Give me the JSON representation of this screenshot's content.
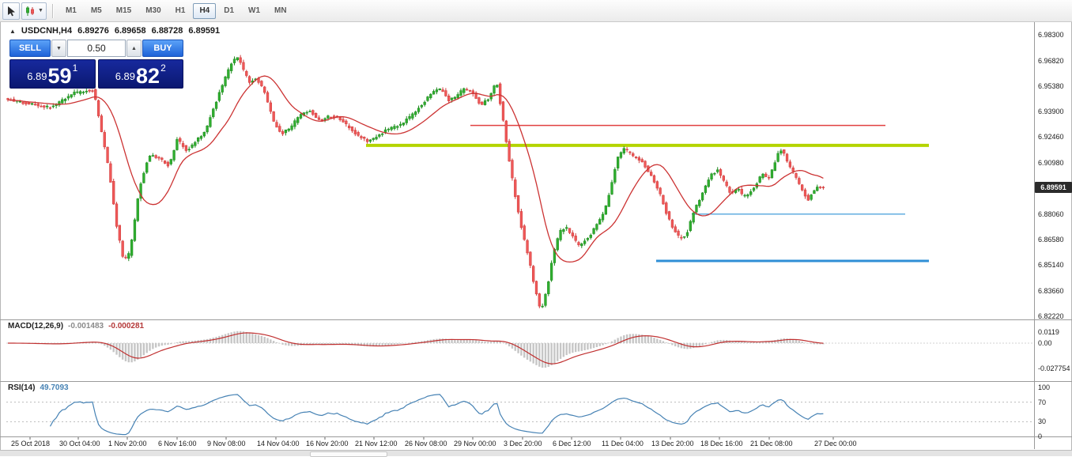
{
  "icons": {
    "caret_down": "▼",
    "caret_up": "▲",
    "one_click_toggle": "▲"
  },
  "toolbar": {
    "timeframes": [
      {
        "id": "m1",
        "label": "M1",
        "active": false
      },
      {
        "id": "m5",
        "label": "M5",
        "active": false
      },
      {
        "id": "m15",
        "label": "M15",
        "active": false
      },
      {
        "id": "m30",
        "label": "M30",
        "active": false
      },
      {
        "id": "h1",
        "label": "H1",
        "active": false
      },
      {
        "id": "h4",
        "label": "H4",
        "active": true
      },
      {
        "id": "d1",
        "label": "D1",
        "active": false
      },
      {
        "id": "w1",
        "label": "W1",
        "active": false
      },
      {
        "id": "mn",
        "label": "MN",
        "active": false
      }
    ]
  },
  "chart": {
    "symbol_header": "USDCNH,H4",
    "open": "6.89276",
    "high": "6.89658",
    "low": "6.88728",
    "close": "6.89591",
    "current_price": "6.89591",
    "price_axis": [
      "6.98300",
      "6.96820",
      "6.95380",
      "6.93900",
      "6.92460",
      "6.90980",
      "6.88060",
      "6.86580",
      "6.85140",
      "6.83660",
      "6.82220"
    ],
    "trade_panel": {
      "sell_label": "SELL",
      "buy_label": "BUY",
      "volume": "0.50",
      "sell_price_small": "6.89",
      "sell_price_big": "59",
      "sell_price_sup": "1",
      "buy_price_small": "6.89",
      "buy_price_big": "82",
      "buy_price_sup": "2"
    }
  },
  "macd": {
    "label": "MACD(12,26,9)",
    "value1": "-0.001483",
    "value2": "-0.000281",
    "axis": [
      {
        "label": "0.0119",
        "y": 420
      },
      {
        "label": "0.00",
        "y": 434
      },
      {
        "label": "-0.027754",
        "y": 466
      }
    ]
  },
  "rsi": {
    "label": "RSI(14)",
    "value": "49.7093",
    "axis": [
      {
        "label": "100",
        "v": 100
      },
      {
        "label": "70",
        "v": 70
      },
      {
        "label": "30",
        "v": 30
      },
      {
        "label": "0",
        "v": 0
      }
    ],
    "levels": [
      70,
      30
    ]
  },
  "time_axis": [
    {
      "label": "25 Oct 2018",
      "x": 14
    },
    {
      "label": "30 Oct 04:00",
      "x": 75
    },
    {
      "label": "1 Nov 20:00",
      "x": 137
    },
    {
      "label": "6 Nov 16:00",
      "x": 200
    },
    {
      "label": "9 Nov 08:00",
      "x": 262
    },
    {
      "label": "14 Nov 04:00",
      "x": 325
    },
    {
      "label": "16 Nov 20:00",
      "x": 387
    },
    {
      "label": "21 Nov 12:00",
      "x": 449
    },
    {
      "label": "26 Nov 08:00",
      "x": 512
    },
    {
      "label": "29 Nov 00:00",
      "x": 574
    },
    {
      "label": "3 Dec 20:00",
      "x": 637
    },
    {
      "label": "6 Dec 12:00",
      "x": 699
    },
    {
      "label": "11 Dec 04:00",
      "x": 761
    },
    {
      "label": "13 Dec 20:00",
      "x": 824
    },
    {
      "label": "18 Dec 16:00",
      "x": 886
    },
    {
      "label": "21 Dec 08:00",
      "x": 949
    },
    {
      "label": "27 Dec 00:00",
      "x": 1030
    }
  ],
  "chart_data": {
    "type": "candlestick",
    "symbol": "USDCNH",
    "timeframe": "H4",
    "title": "USDCNH,H4",
    "ylim": [
      6.8222,
      6.983
    ],
    "y_axis": {
      "top_price": 6.983,
      "bottom_price": 6.8222,
      "top_y": 44,
      "bottom_y": 400
    },
    "x_start": 10,
    "x_end": 1042,
    "candle_step": 3.82,
    "ma_period": 16,
    "colors": {
      "up": "#2fae2f",
      "up_edge": "#1e8a1e",
      "down": "#ef5858",
      "down_edge": "#cf3b3b",
      "ma": "#cc3333",
      "macd_hist": "#c6c6c6",
      "macd_signal": "#c03030",
      "rsi": "#4682b4",
      "divider": "#9a9a9a"
    },
    "hlines": [
      {
        "name": "resistance-red",
        "price": 6.9312,
        "x1": 595,
        "x2": 1120,
        "color": "#e04040",
        "width": 1.5
      },
      {
        "name": "resistance-yellow",
        "price": 6.9198,
        "x1": 463,
        "x2": 1175,
        "color": "#b4d400",
        "width": 4
      },
      {
        "name": "support-lightblue",
        "price": 6.8806,
        "x1": 875,
        "x2": 1145,
        "color": "#62aee0",
        "width": 1.5
      },
      {
        "name": "support-blue",
        "price": 6.8538,
        "x1": 830,
        "x2": 1175,
        "color": "#2f8fd6",
        "width": 3
      }
    ],
    "price_anchors": [
      [
        10,
        6.9465
      ],
      [
        40,
        6.9435
      ],
      [
        70,
        6.9415
      ],
      [
        95,
        6.9495
      ],
      [
        122,
        6.9515
      ],
      [
        132,
        6.928
      ],
      [
        142,
        6.905
      ],
      [
        152,
        6.872
      ],
      [
        160,
        6.8545
      ],
      [
        168,
        6.858
      ],
      [
        180,
        6.895
      ],
      [
        192,
        6.914
      ],
      [
        205,
        6.9125
      ],
      [
        218,
        6.908
      ],
      [
        228,
        6.9235
      ],
      [
        240,
        6.9165
      ],
      [
        252,
        6.9225
      ],
      [
        264,
        6.9285
      ],
      [
        276,
        6.9435
      ],
      [
        288,
        6.9575
      ],
      [
        298,
        6.9685
      ],
      [
        304,
        6.9705
      ],
      [
        312,
        6.9625
      ],
      [
        320,
        6.9555
      ],
      [
        328,
        6.9585
      ],
      [
        338,
        6.9505
      ],
      [
        350,
        6.9335
      ],
      [
        360,
        6.9265
      ],
      [
        372,
        6.9305
      ],
      [
        384,
        6.9375
      ],
      [
        396,
        6.9395
      ],
      [
        408,
        6.9335
      ],
      [
        420,
        6.9365
      ],
      [
        432,
        6.9355
      ],
      [
        444,
        6.9305
      ],
      [
        456,
        6.9255
      ],
      [
        468,
        6.9225
      ],
      [
        480,
        6.9245
      ],
      [
        492,
        6.9285
      ],
      [
        504,
        6.9305
      ],
      [
        516,
        6.9335
      ],
      [
        528,
        6.9385
      ],
      [
        540,
        6.9445
      ],
      [
        552,
        6.9505
      ],
      [
        562,
        6.9525
      ],
      [
        572,
        6.9455
      ],
      [
        582,
        6.9485
      ],
      [
        592,
        6.9525
      ],
      [
        602,
        6.9495
      ],
      [
        612,
        6.9425
      ],
      [
        622,
        6.9465
      ],
      [
        632,
        6.9565
      ],
      [
        640,
        6.9345
      ],
      [
        648,
        6.9105
      ],
      [
        656,
        6.8895
      ],
      [
        664,
        6.8715
      ],
      [
        672,
        6.8565
      ],
      [
        680,
        6.8395
      ],
      [
        688,
        6.8245
      ],
      [
        696,
        6.8385
      ],
      [
        704,
        6.8585
      ],
      [
        712,
        6.8705
      ],
      [
        720,
        6.8735
      ],
      [
        728,
        6.8675
      ],
      [
        736,
        6.8625
      ],
      [
        744,
        6.8655
      ],
      [
        752,
        6.8695
      ],
      [
        760,
        6.8755
      ],
      [
        768,
        6.8815
      ],
      [
        776,
        6.8955
      ],
      [
        784,
        6.9115
      ],
      [
        792,
        6.9185
      ],
      [
        800,
        6.9155
      ],
      [
        808,
        6.9125
      ],
      [
        816,
        6.9105
      ],
      [
        824,
        6.9045
      ],
      [
        832,
        6.8985
      ],
      [
        840,
        6.8905
      ],
      [
        848,
        6.8795
      ],
      [
        856,
        6.8715
      ],
      [
        864,
        6.8665
      ],
      [
        872,
        6.8685
      ],
      [
        880,
        6.8805
      ],
      [
        888,
        6.8885
      ],
      [
        896,
        6.8965
      ],
      [
        904,
        6.9035
      ],
      [
        912,
        6.9055
      ],
      [
        920,
        6.8985
      ],
      [
        928,
        6.8925
      ],
      [
        936,
        6.8955
      ],
      [
        944,
        6.8905
      ],
      [
        952,
        6.8925
      ],
      [
        960,
        6.8975
      ],
      [
        968,
        6.9035
      ],
      [
        976,
        6.9005
      ],
      [
        984,
        6.9105
      ],
      [
        990,
        6.9185
      ],
      [
        996,
        6.9145
      ],
      [
        1002,
        6.9085
      ],
      [
        1008,
        6.9035
      ],
      [
        1014,
        6.8985
      ],
      [
        1020,
        6.8925
      ],
      [
        1026,
        6.8885
      ],
      [
        1032,
        6.8935
      ],
      [
        1038,
        6.8955
      ],
      [
        1042,
        6.8959
      ]
    ]
  }
}
